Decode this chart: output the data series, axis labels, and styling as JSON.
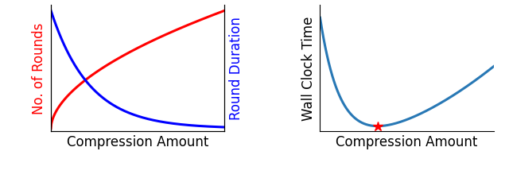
{
  "left_xlabel": "Compression Amount",
  "left_ylabel_left": "No. of Rounds",
  "left_ylabel_right": "Round Duration",
  "left_ylabel_left_color": "#ff0000",
  "left_ylabel_right_color": "#0000ff",
  "right_xlabel": "Compression Amount",
  "right_ylabel": "Wall Clock Time",
  "right_ylabel_color": "#000000",
  "curve_red_color": "#ff0000",
  "curve_blue_color": "#0000ff",
  "curve_right_color": "#2878b5",
  "star_color": "#ff0000",
  "xlabel_fontsize": 12,
  "ylabel_fontsize": 12,
  "line_width": 2.2
}
